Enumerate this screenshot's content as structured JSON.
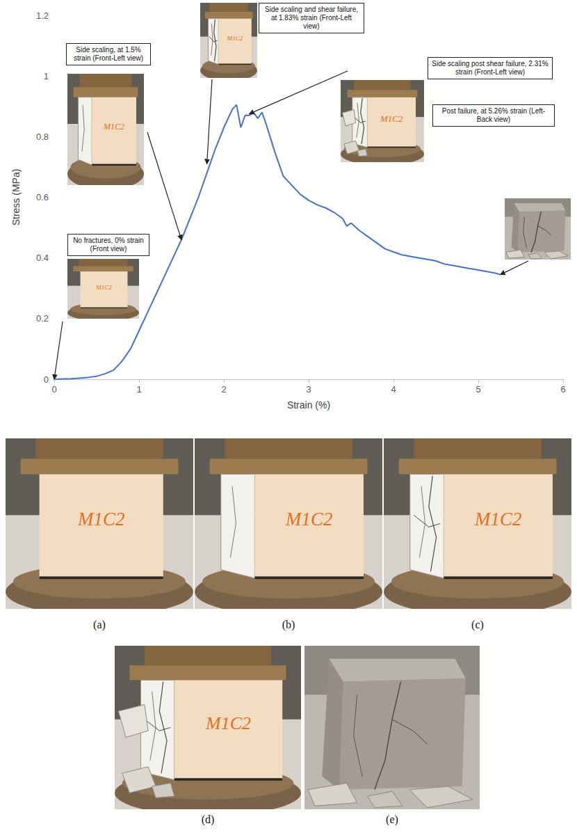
{
  "chart_data": {
    "type": "line",
    "xlabel": "Strain (%)",
    "ylabel": "Stress (MPa)",
    "color": "#4472c4",
    "x": [
      0,
      0.2,
      0.4,
      0.5,
      0.6,
      0.7,
      0.8,
      0.9,
      1.0,
      1.1,
      1.2,
      1.3,
      1.4,
      1.5,
      1.6,
      1.7,
      1.8,
      1.9,
      2.0,
      2.1,
      2.15,
      2.2,
      2.25,
      2.3,
      2.35,
      2.4,
      2.45,
      2.5,
      2.6,
      2.7,
      2.8,
      2.9,
      3.0,
      3.1,
      3.2,
      3.3,
      3.4,
      3.45,
      3.5,
      3.6,
      3.7,
      3.8,
      3.9,
      4.0,
      4.1,
      4.2,
      4.3,
      4.4,
      4.5,
      4.6,
      4.7,
      4.8,
      4.9,
      5.0,
      5.1,
      5.2,
      5.26
    ],
    "values": [
      0,
      0.002,
      0.006,
      0.01,
      0.018,
      0.03,
      0.06,
      0.1,
      0.16,
      0.22,
      0.28,
      0.34,
      0.4,
      0.46,
      0.53,
      0.6,
      0.68,
      0.76,
      0.83,
      0.89,
      0.905,
      0.83,
      0.87,
      0.87,
      0.88,
      0.86,
      0.88,
      0.84,
      0.75,
      0.67,
      0.64,
      0.61,
      0.59,
      0.575,
      0.565,
      0.55,
      0.53,
      0.505,
      0.515,
      0.49,
      0.47,
      0.45,
      0.43,
      0.42,
      0.41,
      0.405,
      0.4,
      0.395,
      0.39,
      0.38,
      0.375,
      0.37,
      0.365,
      0.36,
      0.355,
      0.35,
      0.345
    ],
    "xlim": [
      0,
      6
    ],
    "ylim": [
      0,
      1.2
    ],
    "xticks": [
      0,
      1,
      2,
      3,
      4,
      5,
      6
    ],
    "yticks": [
      0,
      0.2,
      0.4,
      0.6,
      0.8,
      1,
      1.2
    ],
    "grid": false,
    "annotations": [
      {
        "text": "No fractures, 0% strain (Front view)",
        "x": 0,
        "y": 0
      },
      {
        "text": "Side scaling, at 1.5% strain (Front-Left view)",
        "x": 1.5,
        "y": 0.46
      },
      {
        "text": "Side scaling and shear failure, at 1.83% strain (Front-Left view)",
        "x": 1.8,
        "y": 0.71
      },
      {
        "text": "Side scaling post shear failure, 2.31% strain (Front-Left view)",
        "x": 2.3,
        "y": 0.875
      },
      {
        "text": "Post failure, at 5.26% strain (Left-Back view)",
        "x": 5.26,
        "y": 0.345
      }
    ]
  },
  "photo_text": "M1C2",
  "panels": [
    {
      "label": "(a)"
    },
    {
      "label": "(b)"
    },
    {
      "label": "(c)"
    },
    {
      "label": "(d)"
    },
    {
      "label": "(e)"
    }
  ]
}
